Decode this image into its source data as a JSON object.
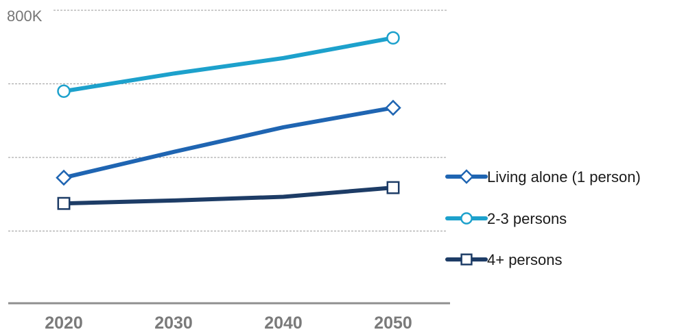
{
  "chart_data": {
    "type": "line",
    "title": "",
    "xlabel": "",
    "ylabel": "",
    "x": [
      2020,
      2030,
      2040,
      2050
    ],
    "x_tick_labels": [
      "2020",
      "2030",
      "2040",
      "2050"
    ],
    "ylim": [
      0,
      800000
    ],
    "y_tick_labels": [
      "800K"
    ],
    "gridlines": [
      200000,
      400000,
      600000,
      800000
    ],
    "grid": true,
    "legend_position": "right",
    "series": [
      {
        "name": "Living alone (1 person)",
        "values": [
          345000,
          415000,
          482000,
          535000
        ],
        "color": "#1f65b2",
        "marker": "diamond"
      },
      {
        "name": "2-3 persons",
        "values": [
          580000,
          628000,
          670000,
          725000
        ],
        "color": "#1da1cc",
        "marker": "circle"
      },
      {
        "name": "4+ persons",
        "values": [
          275000,
          283000,
          293000,
          318000
        ],
        "color": "#1d3c66",
        "marker": "square"
      }
    ]
  }
}
